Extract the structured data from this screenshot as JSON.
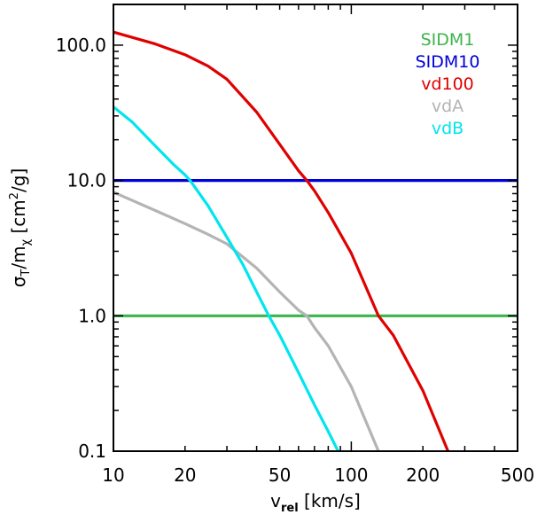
{
  "chart_data": {
    "type": "line",
    "xscale": "log",
    "yscale": "log",
    "xlim": [
      10,
      500
    ],
    "ylim": [
      0.1,
      200
    ],
    "x_ticks": [
      {
        "value": 10,
        "label": "10"
      },
      {
        "value": 20,
        "label": "20"
      },
      {
        "value": 50,
        "label": "50"
      },
      {
        "value": 100,
        "label": "100"
      },
      {
        "value": 200,
        "label": "200"
      },
      {
        "value": 500,
        "label": "500"
      }
    ],
    "y_ticks": [
      {
        "value": 0.1,
        "label": "0.1"
      },
      {
        "value": 1,
        "label": "1.0"
      },
      {
        "value": 10,
        "label": "10.0"
      },
      {
        "value": 100,
        "label": "100.0"
      }
    ],
    "xlabel": {
      "main": "v",
      "sub": "rel",
      "rest": " [km/s]"
    },
    "ylabel": {
      "sigma": "σ",
      "sigma_sub": "T",
      "slash": "/m",
      "m_sub": "χ",
      "rest1": " [cm",
      "sup": "2",
      "rest2": "/g]"
    },
    "legend_position": "top-right",
    "grid": false,
    "series": [
      {
        "name": "SIDM1",
        "color": "#3cb44b",
        "x": [
          10,
          500
        ],
        "y": [
          1,
          1
        ]
      },
      {
        "name": "SIDM10",
        "color": "#0000dd",
        "x": [
          10,
          500
        ],
        "y": [
          10,
          10
        ]
      },
      {
        "name": "vd100",
        "color": "#e00000",
        "x": [
          10,
          15,
          20,
          25,
          30,
          40,
          50,
          60,
          65,
          70,
          80,
          100,
          130,
          150,
          200,
          255
        ],
        "y": [
          125,
          102,
          85,
          70,
          56,
          32,
          18.5,
          11.8,
          10,
          8.4,
          5.8,
          2.9,
          1.0,
          0.72,
          0.28,
          0.1
        ]
      },
      {
        "name": "vdA",
        "color": "#b4b4b4",
        "x": [
          10,
          15,
          20,
          25,
          30,
          40,
          50,
          60,
          65,
          70,
          80,
          100,
          130
        ],
        "y": [
          8.2,
          6.0,
          4.8,
          4.0,
          3.4,
          2.25,
          1.5,
          1.1,
          1.0,
          0.82,
          0.6,
          0.3,
          0.1
        ]
      },
      {
        "name": "vdB",
        "color": "#00e5ee",
        "x": [
          10,
          12,
          15,
          18,
          20,
          21,
          25,
          30,
          35,
          40,
          45,
          50,
          60,
          70,
          80,
          88
        ],
        "y": [
          35,
          27,
          18,
          13,
          11,
          10,
          6.5,
          3.8,
          2.4,
          1.5,
          1.0,
          0.72,
          0.38,
          0.22,
          0.14,
          0.1
        ]
      }
    ]
  }
}
